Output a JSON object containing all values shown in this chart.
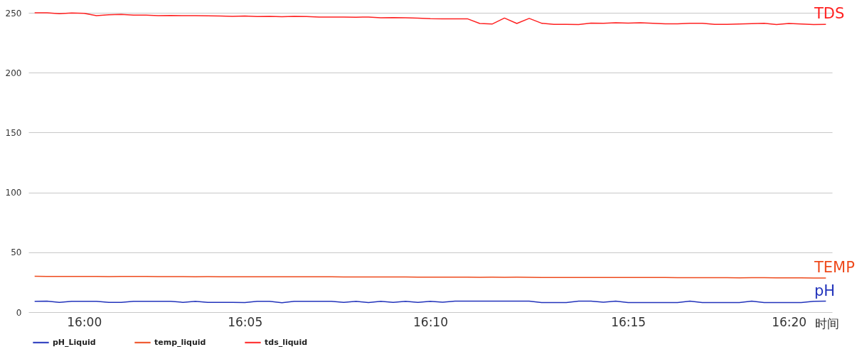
{
  "chart_data": {
    "type": "line",
    "xlabel": "时间",
    "categories": [
      null,
      null,
      null,
      null,
      "16:00",
      null,
      null,
      null,
      null,
      null,
      null,
      null,
      null,
      null,
      null,
      null,
      null,
      "16:05",
      null,
      null,
      null,
      null,
      null,
      null,
      null,
      null,
      null,
      null,
      null,
      null,
      null,
      null,
      "16:10",
      null,
      null,
      null,
      null,
      null,
      null,
      null,
      null,
      null,
      null,
      null,
      null,
      null,
      null,
      null,
      "16:15",
      null,
      null,
      null,
      null,
      null,
      null,
      null,
      null,
      null,
      null,
      null,
      null,
      "16:20",
      null,
      null,
      null
    ],
    "series": [
      {
        "name": "pH_Liquid",
        "color": "#2233bb",
        "values": [
          9.1,
          9.2,
          8.1,
          9.1,
          9.1,
          9.0,
          8.1,
          8.1,
          9.1,
          9.1,
          9.1,
          9.0,
          8.2,
          9.1,
          8.1,
          8.1,
          8.1,
          8.0,
          9.0,
          9.0,
          7.9,
          9.0,
          9.0,
          9.0,
          9.0,
          8.1,
          9.0,
          8.0,
          9.1,
          8.1,
          9.1,
          8.1,
          9.1,
          8.3,
          9.2,
          9.2,
          9.2,
          9.2,
          9.2,
          9.2,
          9.2,
          8.0,
          8.0,
          8.0,
          9.2,
          9.2,
          8.3,
          9.2,
          8.0,
          8.0,
          8.0,
          8.0,
          8.0,
          9.2,
          8.0,
          8.0,
          8.0,
          8.0,
          9.2,
          8.0,
          8.0,
          8.0,
          8.0,
          9.0,
          9.2
        ]
      },
      {
        "name": "temp_liquid",
        "color": "#ee4a1c",
        "values": [
          30.0,
          29.8,
          29.8,
          29.8,
          29.8,
          29.8,
          29.7,
          29.8,
          29.8,
          29.8,
          29.7,
          29.7,
          29.7,
          29.6,
          29.7,
          29.6,
          29.6,
          29.6,
          29.6,
          29.6,
          29.5,
          29.5,
          29.5,
          29.5,
          29.5,
          29.4,
          29.4,
          29.4,
          29.4,
          29.4,
          29.4,
          29.3,
          29.2,
          29.2,
          29.2,
          29.2,
          29.1,
          29.2,
          29.1,
          29.2,
          29.1,
          29.0,
          29.0,
          29.0,
          29.0,
          29.0,
          29.0,
          28.9,
          28.9,
          28.9,
          28.9,
          28.9,
          28.8,
          28.8,
          28.8,
          28.8,
          28.8,
          28.7,
          28.8,
          28.8,
          28.7,
          28.7,
          28.6,
          28.5,
          28.5
        ]
      },
      {
        "name": "tds_liquid",
        "color": "#ff2020",
        "values": [
          250,
          250,
          249.3,
          249.8,
          249.6,
          247.6,
          248.3,
          248.7,
          248.1,
          248,
          247.6,
          247.8,
          247.6,
          247.6,
          247.5,
          247.3,
          247.1,
          247.3,
          246.9,
          247,
          246.8,
          247,
          246.9,
          246.5,
          246.5,
          246.5,
          246.3,
          246.5,
          245.8,
          246,
          245.8,
          245.6,
          245.1,
          245,
          245,
          245,
          241.1,
          240.6,
          245.6,
          241.1,
          245.3,
          241.3,
          240.4,
          240.4,
          240.2,
          241.4,
          241.2,
          241.7,
          241.4,
          241.7,
          241.2,
          240.8,
          240.8,
          241.3,
          241.3,
          240.4,
          240.4,
          240.6,
          241,
          241.3,
          240.2,
          241.1,
          240.6,
          240.2,
          240.4
        ]
      }
    ],
    "ylim": [
      0,
      250
    ],
    "yticks": [
      0,
      50,
      100,
      150,
      200,
      250
    ],
    "grid": "y",
    "legend": "bottom left",
    "annotations": [
      "TDS",
      "TEMP",
      "pH"
    ]
  }
}
